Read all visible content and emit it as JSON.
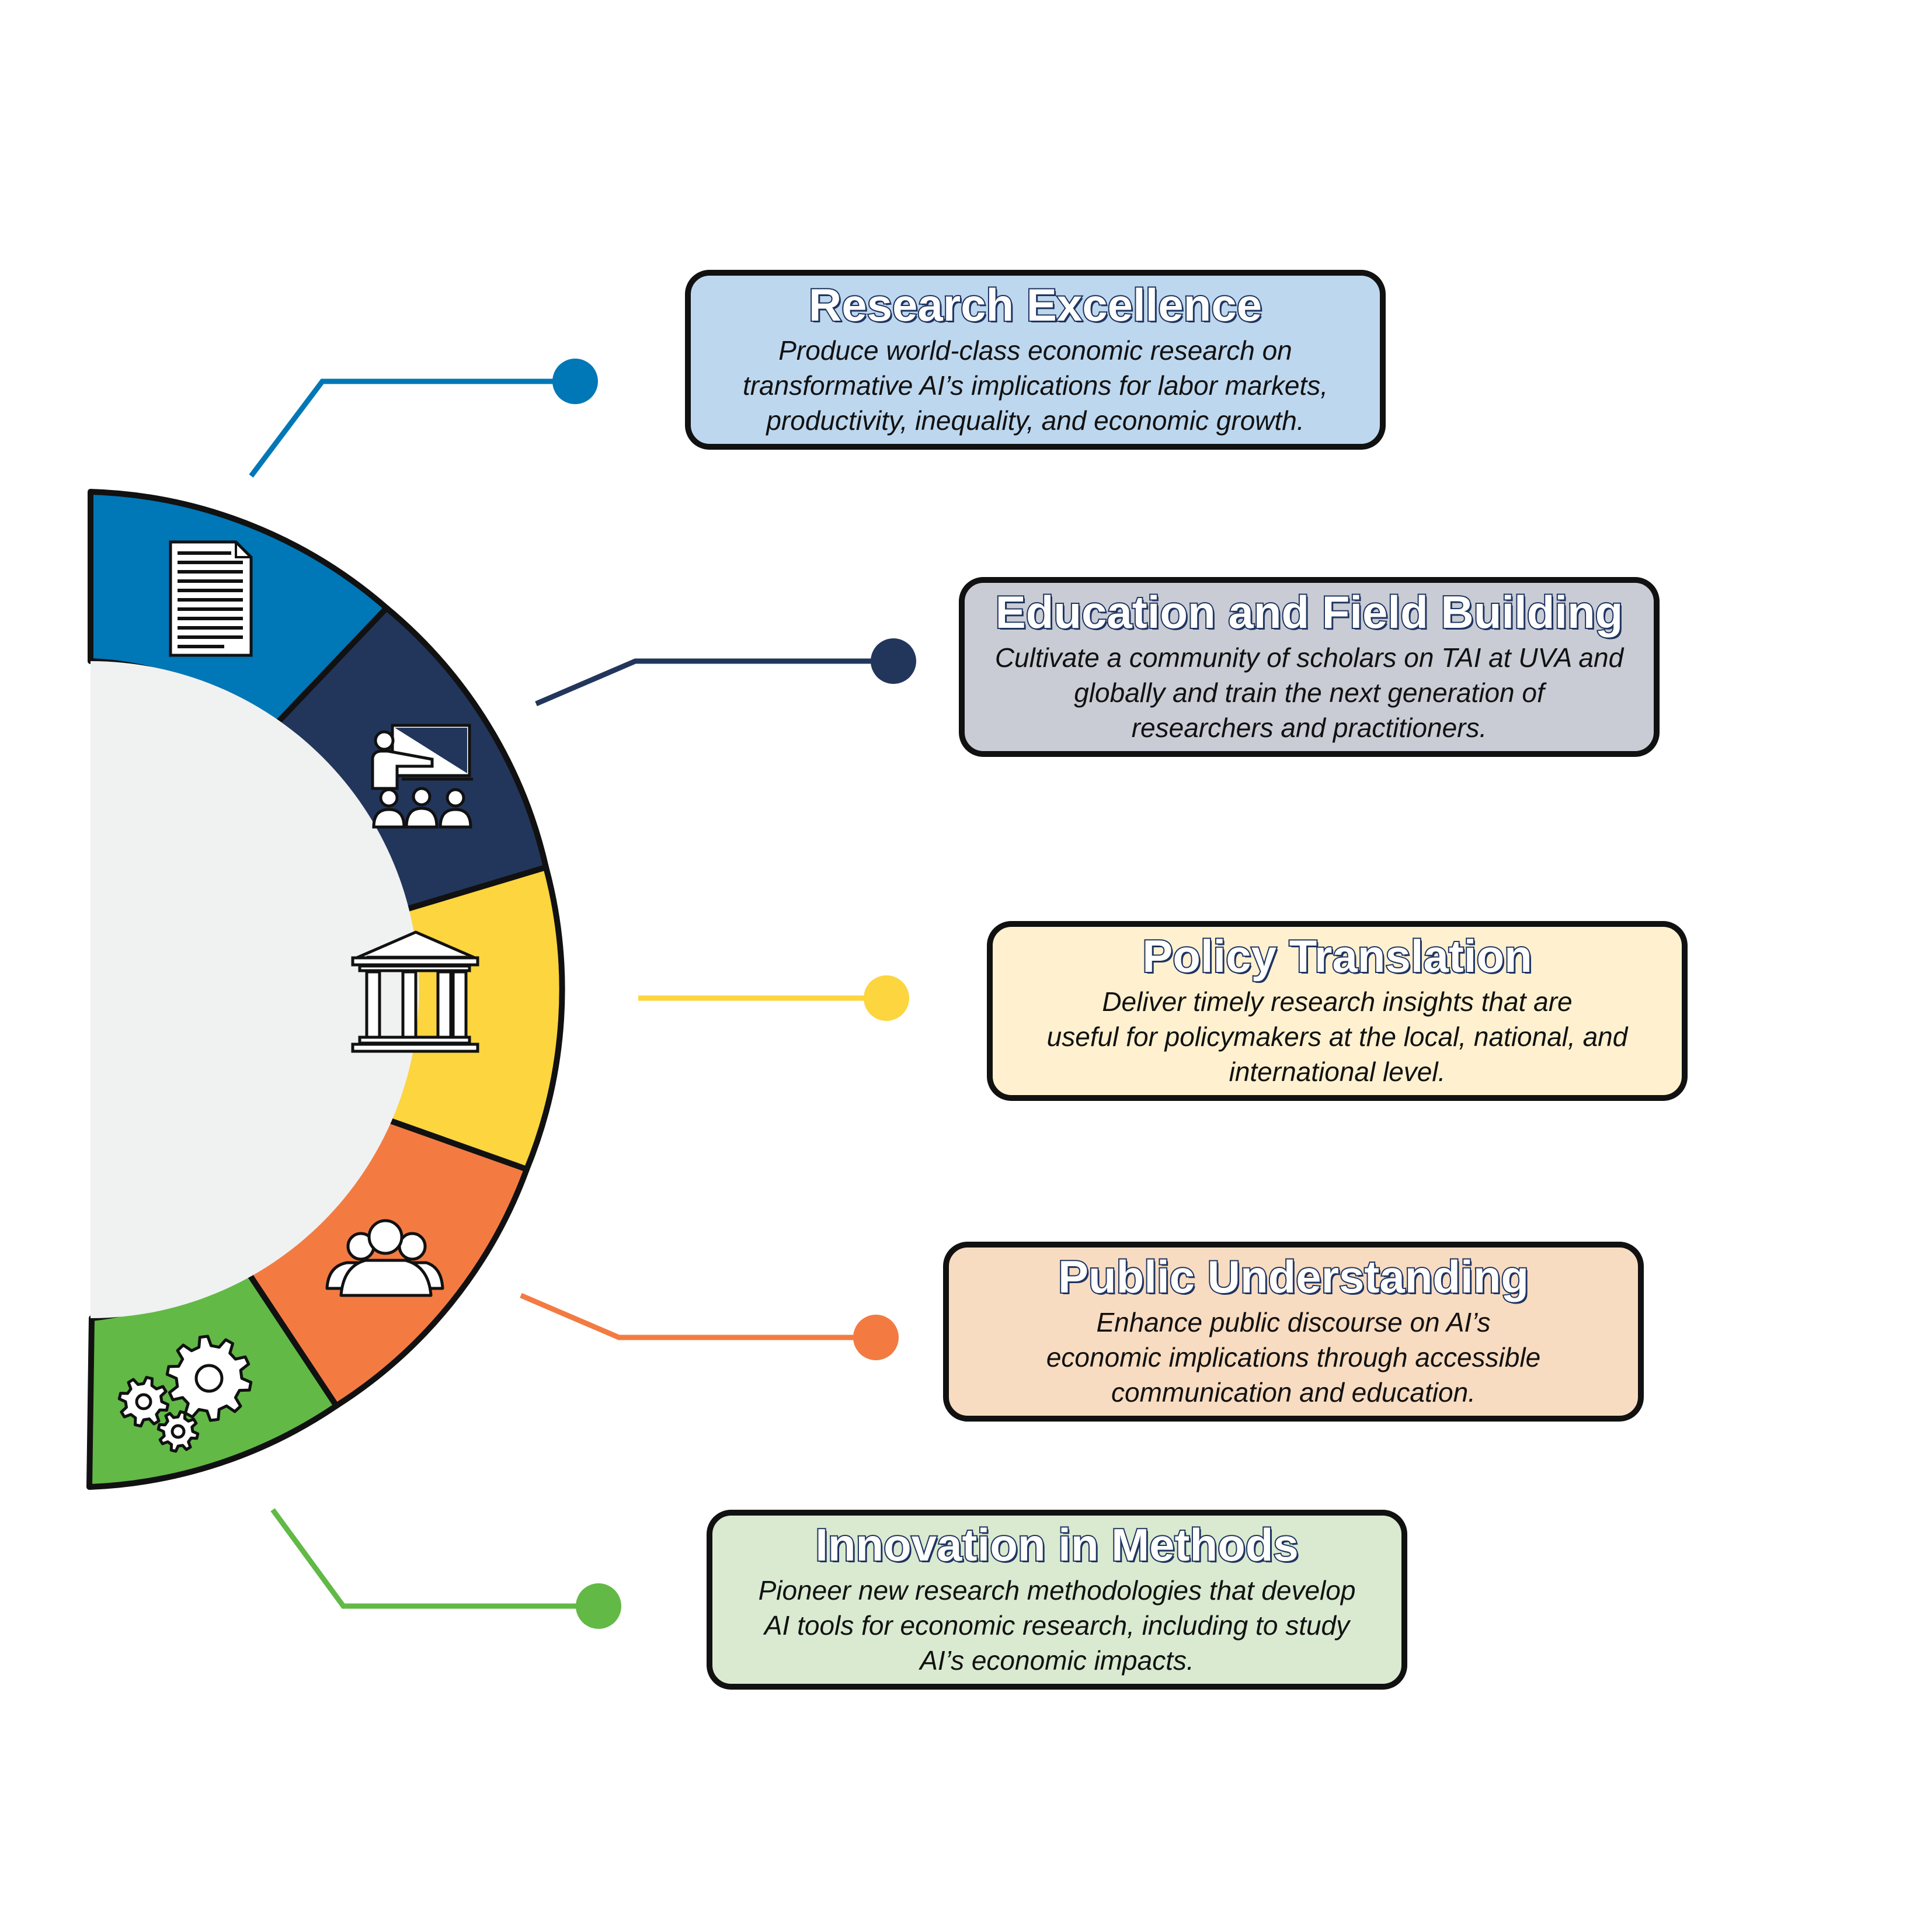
{
  "colors": {
    "research": "#0077b7",
    "education": "#22365c",
    "policy": "#fcd53f",
    "public": "#f37b42",
    "methods": "#62b946",
    "center": "#f0f1f1",
    "outline": "#111111",
    "title_outline": "#1f3460"
  },
  "goals": [
    {
      "title": "Research Excellence",
      "description": "Produce world-class economic research on\ntransformative AI’s implications for labor markets,\nproductivity, inequality, and economic growth.",
      "icon": "document-icon",
      "color": "#0077b7",
      "box_fill": "#bdd7ee"
    },
    {
      "title": "Education and Field Building",
      "description": "Cultivate a community of scholars on TAI at UVA and\nglobally and train the next generation of\nresearchers and practitioners.",
      "icon": "teacher-presentation-icon",
      "color": "#22365c",
      "box_fill": "#c9ccd5"
    },
    {
      "title": "Policy Translation",
      "description": "Deliver timely research insights that are\nuseful for policymakers at the local, national, and\ninternational level.",
      "icon": "government-building-icon",
      "color": "#fcd53f",
      "box_fill": "#fff1cf"
    },
    {
      "title": "Public Understanding",
      "description": "Enhance public discourse on AI’s\neconomic implications through accessible\ncommunication and education.",
      "icon": "group-of-people-icon",
      "color": "#f37b42",
      "box_fill": "#f8dcc1"
    },
    {
      "title": "Innovation in Methods",
      "description": "Pioneer new research methodologies that develop\nAI tools for economic research, including to study\nAI’s economic impacts.",
      "icon": "gears-icon",
      "color": "#62b946",
      "box_fill": "#d9ead0"
    }
  ]
}
